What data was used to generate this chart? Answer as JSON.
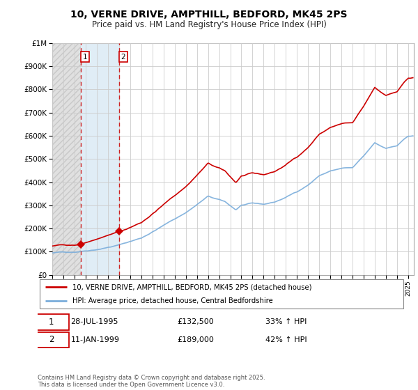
{
  "title": "10, VERNE DRIVE, AMPTHILL, BEDFORD, MK45 2PS",
  "subtitle": "Price paid vs. HM Land Registry's House Price Index (HPI)",
  "property_label": "10, VERNE DRIVE, AMPTHILL, BEDFORD, MK45 2PS (detached house)",
  "hpi_label": "HPI: Average price, detached house, Central Bedfordshire",
  "property_color": "#cc0000",
  "hpi_color": "#7aaddb",
  "annotation_box_color": "#cc0000",
  "sale1_date": 1995.57,
  "sale1_price": 132500,
  "sale1_label": "1",
  "sale1_text_col1": "28-JUL-1995",
  "sale1_text_col2": "£132,500",
  "sale1_text_col3": "33% ↑ HPI",
  "sale2_date": 1999.03,
  "sale2_price": 189000,
  "sale2_label": "2",
  "sale2_text_col1": "11-JAN-1999",
  "sale2_text_col2": "£189,000",
  "sale2_text_col3": "42% ↑ HPI",
  "ylim": [
    0,
    1000000
  ],
  "ytick_step": 100000,
  "xlim_start": 1993.0,
  "xlim_end": 2025.5,
  "footer": "Contains HM Land Registry data © Crown copyright and database right 2025.\nThis data is licensed under the Open Government Licence v3.0."
}
